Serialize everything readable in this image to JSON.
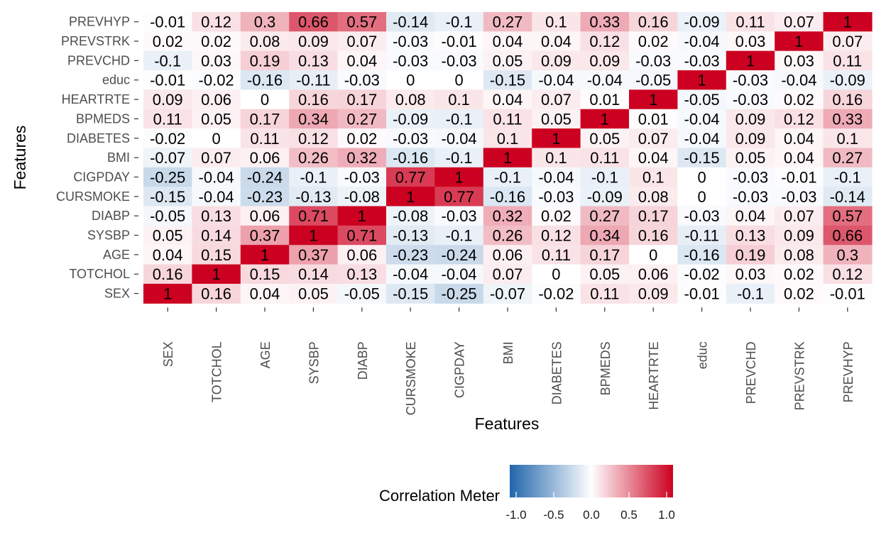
{
  "chart_data": {
    "type": "heatmap",
    "x_labels": [
      "SEX",
      "TOTCHOL",
      "AGE",
      "SYSBP",
      "DIABP",
      "CURSMOKE",
      "CIGPDAY",
      "BMI",
      "DIABETES",
      "BPMEDS",
      "HEARTRTE",
      "educ",
      "PREVCHD",
      "PREVSTRK",
      "PREVHYP"
    ],
    "y_labels": [
      "PREVHYP",
      "PREVSTRK",
      "PREVCHD",
      "educ",
      "HEARTRTE",
      "BPMEDS",
      "DIABETES",
      "BMI",
      "CIGPDAY",
      "CURSMOKE",
      "DIABP",
      "SYSBP",
      "AGE",
      "TOTCHOL",
      "SEX"
    ],
    "values": [
      [
        -0.01,
        0.12,
        0.3,
        0.66,
        0.57,
        -0.14,
        -0.1,
        0.27,
        0.1,
        0.33,
        0.16,
        -0.09,
        0.11,
        0.07,
        1
      ],
      [
        0.02,
        0.02,
        0.08,
        0.09,
        0.07,
        -0.03,
        -0.01,
        0.04,
        0.04,
        0.12,
        0.02,
        -0.04,
        0.03,
        1,
        0.07
      ],
      [
        -0.1,
        0.03,
        0.19,
        0.13,
        0.04,
        -0.03,
        -0.03,
        0.05,
        0.09,
        0.09,
        -0.03,
        -0.03,
        1,
        0.03,
        0.11
      ],
      [
        -0.01,
        -0.02,
        -0.16,
        -0.11,
        -0.03,
        0,
        0,
        -0.15,
        -0.04,
        -0.04,
        -0.05,
        1,
        -0.03,
        -0.04,
        -0.09
      ],
      [
        0.09,
        0.06,
        0,
        0.16,
        0.17,
        0.08,
        0.1,
        0.04,
        0.07,
        0.01,
        1,
        -0.05,
        -0.03,
        0.02,
        0.16
      ],
      [
        0.11,
        0.05,
        0.17,
        0.34,
        0.27,
        -0.09,
        -0.1,
        0.11,
        0.05,
        1,
        0.01,
        -0.04,
        0.09,
        0.12,
        0.33
      ],
      [
        -0.02,
        0,
        0.11,
        0.12,
        0.02,
        -0.03,
        -0.04,
        0.1,
        1,
        0.05,
        0.07,
        -0.04,
        0.09,
        0.04,
        0.1
      ],
      [
        -0.07,
        0.07,
        0.06,
        0.26,
        0.32,
        -0.16,
        -0.1,
        1,
        0.1,
        0.11,
        0.04,
        -0.15,
        0.05,
        0.04,
        0.27
      ],
      [
        -0.25,
        -0.04,
        -0.24,
        -0.1,
        -0.03,
        0.77,
        1,
        -0.1,
        -0.04,
        -0.1,
        0.1,
        0,
        -0.03,
        -0.01,
        -0.1
      ],
      [
        -0.15,
        -0.04,
        -0.23,
        -0.13,
        -0.08,
        1,
        0.77,
        -0.16,
        -0.03,
        -0.09,
        0.08,
        0,
        -0.03,
        -0.03,
        -0.14
      ],
      [
        -0.05,
        0.13,
        0.06,
        0.71,
        1,
        -0.08,
        -0.03,
        0.32,
        0.02,
        0.27,
        0.17,
        -0.03,
        0.04,
        0.07,
        0.57
      ],
      [
        0.05,
        0.14,
        0.37,
        1,
        0.71,
        -0.13,
        -0.1,
        0.26,
        0.12,
        0.34,
        0.16,
        -0.11,
        0.13,
        0.09,
        0.66
      ],
      [
        0.04,
        0.15,
        1,
        0.37,
        0.06,
        -0.23,
        -0.24,
        0.06,
        0.11,
        0.17,
        0,
        -0.16,
        0.19,
        0.08,
        0.3
      ],
      [
        0.16,
        1,
        0.15,
        0.14,
        0.13,
        -0.04,
        -0.04,
        0.07,
        0,
        0.05,
        0.06,
        -0.02,
        0.03,
        0.02,
        0.12
      ],
      [
        1,
        0.16,
        0.04,
        0.05,
        -0.05,
        -0.15,
        -0.25,
        -0.07,
        -0.02,
        0.11,
        0.09,
        -0.01,
        -0.1,
        0.02,
        -0.01
      ]
    ],
    "xlabel": "Features",
    "ylabel": "Features",
    "legend": {
      "title": "Correlation Meter",
      "ticks": [
        "-1.0",
        "-0.5",
        "0.0",
        "0.5",
        "1.0"
      ],
      "range": [
        -1,
        1
      ],
      "low_color": "#2166ac",
      "mid_color": "#ffffff",
      "high_color": "#cc0020",
      "position": "bottom"
    }
  }
}
